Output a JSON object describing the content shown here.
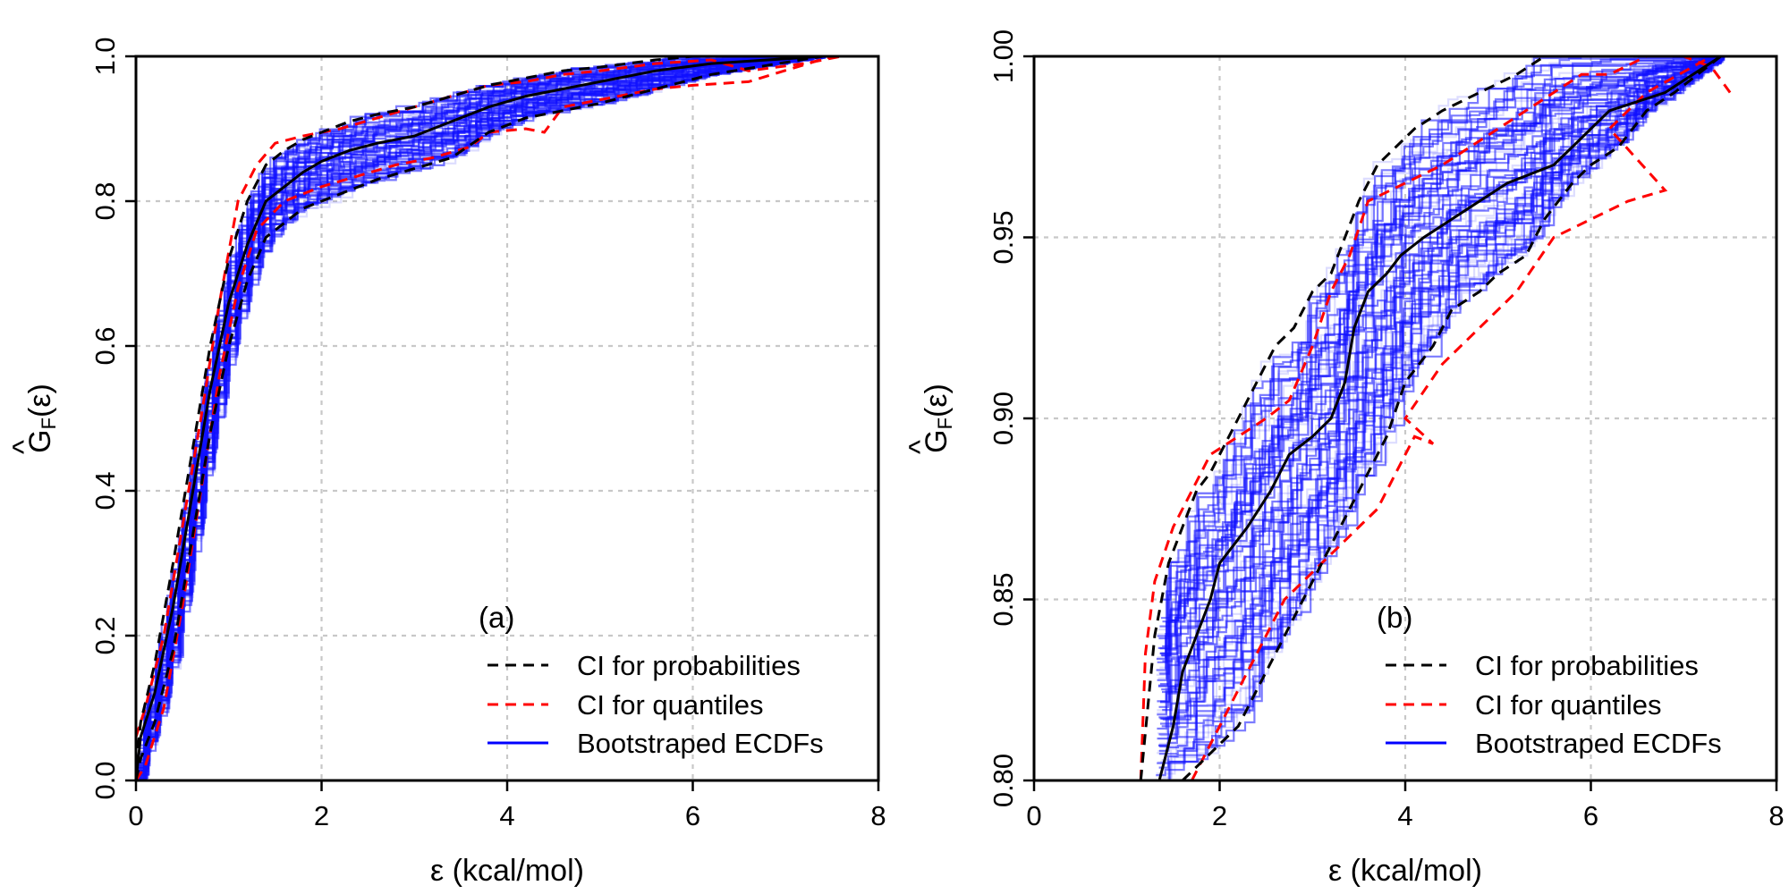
{
  "chart_data": [
    {
      "type": "line",
      "panel_label": "(a)",
      "xlabel": "ε (kcal/mol)",
      "ylabel_main": "G",
      "ylabel_hat": "^",
      "ylabel_sub": "F",
      "ylabel_arg": "(ε)",
      "xlim": [
        0,
        8
      ],
      "ylim": [
        0,
        1
      ],
      "xticks": [
        0,
        2,
        4,
        6,
        8
      ],
      "yticks": [
        0.0,
        0.2,
        0.4,
        0.6,
        0.8,
        1.0
      ],
      "ytick_labels": [
        "0.0",
        "0.2",
        "0.4",
        "0.6",
        "0.8",
        "1.0"
      ],
      "grid": true,
      "legend_position": "bottom-right",
      "legend": [
        "CI for probabilities",
        "CI for quantiles",
        "Bootstraped ECDFs"
      ],
      "series": [
        {
          "name": "ECDF",
          "color": "#000000",
          "style": "solid",
          "x": [
            0,
            0.05,
            0.2,
            0.4,
            0.6,
            0.8,
            1.0,
            1.2,
            1.4,
            1.6,
            1.8,
            2.0,
            2.3,
            2.6,
            3.0,
            3.4,
            3.8,
            4.2,
            4.6,
            5.0,
            5.6,
            6.2,
            7.4
          ],
          "y": [
            0.0,
            0.06,
            0.12,
            0.24,
            0.39,
            0.54,
            0.66,
            0.74,
            0.8,
            0.82,
            0.84,
            0.855,
            0.87,
            0.88,
            0.89,
            0.91,
            0.93,
            0.945,
            0.955,
            0.965,
            0.98,
            0.99,
            1.0
          ]
        },
        {
          "name": "CI for probabilities (upper)",
          "color": "#000000",
          "style": "dashed",
          "x": [
            0,
            0.05,
            0.2,
            0.4,
            0.6,
            0.8,
            1.0,
            1.2,
            1.4,
            1.6,
            1.8,
            2.0,
            2.3,
            2.6,
            3.0,
            3.4,
            3.8,
            4.2,
            4.6,
            5.0,
            5.6,
            6.0,
            7.2
          ],
          "y": [
            0.02,
            0.08,
            0.16,
            0.3,
            0.45,
            0.6,
            0.72,
            0.8,
            0.85,
            0.87,
            0.885,
            0.895,
            0.91,
            0.92,
            0.93,
            0.945,
            0.96,
            0.97,
            0.98,
            0.985,
            0.995,
            1.0,
            1.0
          ]
        },
        {
          "name": "CI for probabilities (lower)",
          "color": "#000000",
          "style": "dashed",
          "x": [
            0,
            0.05,
            0.2,
            0.4,
            0.6,
            0.8,
            1.0,
            1.2,
            1.4,
            1.6,
            1.8,
            2.0,
            2.3,
            2.6,
            3.0,
            3.4,
            3.8,
            4.2,
            4.6,
            5.0,
            5.6,
            6.2,
            7.4
          ],
          "y": [
            0.0,
            0.03,
            0.08,
            0.18,
            0.33,
            0.48,
            0.6,
            0.69,
            0.75,
            0.77,
            0.79,
            0.8,
            0.815,
            0.83,
            0.845,
            0.86,
            0.895,
            0.915,
            0.925,
            0.935,
            0.955,
            0.975,
            1.0
          ]
        },
        {
          "name": "CI for quantiles (upper)",
          "color": "#ff0000",
          "style": "dashed",
          "x": [
            0,
            0.1,
            0.3,
            0.5,
            0.7,
            0.9,
            1.1,
            1.3,
            1.5,
            1.8,
            2.2,
            2.6,
            3.0,
            3.4,
            3.8,
            4.2,
            4.6,
            5.0,
            5.6,
            6.2,
            6.6,
            7.2,
            7.6
          ],
          "y": [
            0.06,
            0.1,
            0.2,
            0.35,
            0.5,
            0.66,
            0.8,
            0.85,
            0.88,
            0.89,
            0.9,
            0.915,
            0.93,
            0.945,
            0.96,
            0.965,
            0.975,
            0.98,
            0.99,
            0.995,
            0.98,
            0.99,
            1.0
          ]
        },
        {
          "name": "CI for quantiles (lower)",
          "color": "#ff0000",
          "style": "dashed",
          "x": [
            0,
            0.1,
            0.3,
            0.5,
            0.7,
            0.9,
            1.1,
            1.3,
            1.6,
            2.0,
            2.4,
            2.8,
            3.2,
            3.6,
            3.8,
            4.2,
            4.4,
            4.6,
            5.0,
            5.6,
            6.0,
            6.6,
            7.5
          ],
          "y": [
            0.0,
            0.02,
            0.1,
            0.24,
            0.4,
            0.56,
            0.68,
            0.76,
            0.8,
            0.82,
            0.835,
            0.85,
            0.86,
            0.875,
            0.895,
            0.9,
            0.895,
            0.93,
            0.94,
            0.955,
            0.96,
            0.965,
            1.0
          ]
        }
      ]
    },
    {
      "type": "line",
      "panel_label": "(b)",
      "xlabel": "ε (kcal/mol)",
      "ylabel_main": "G",
      "ylabel_hat": "^",
      "ylabel_sub": "F",
      "ylabel_arg": "(ε)",
      "xlim": [
        0,
        8
      ],
      "ylim": [
        0.8,
        1.0
      ],
      "xticks": [
        0,
        2,
        4,
        6,
        8
      ],
      "yticks": [
        0.8,
        0.85,
        0.9,
        0.95,
        1.0
      ],
      "ytick_labels": [
        "0.80",
        "0.85",
        "0.90",
        "0.95",
        "1.00"
      ],
      "grid": true,
      "legend_position": "bottom-right",
      "legend": [
        "CI for probabilities",
        "CI for quantiles",
        "Bootstraped ECDFs"
      ],
      "series": [
        {
          "name": "ECDF",
          "color": "#000000",
          "style": "solid",
          "x": [
            1.35,
            1.5,
            1.6,
            1.75,
            1.9,
            2.0,
            2.15,
            2.3,
            2.55,
            2.75,
            3.0,
            3.2,
            3.35,
            3.45,
            3.6,
            3.8,
            3.95,
            4.2,
            4.5,
            5.1,
            5.6,
            5.8,
            6.2,
            6.8,
            7.4
          ],
          "y": [
            0.8,
            0.815,
            0.83,
            0.84,
            0.85,
            0.86,
            0.865,
            0.87,
            0.88,
            0.89,
            0.895,
            0.9,
            0.91,
            0.925,
            0.935,
            0.94,
            0.945,
            0.95,
            0.955,
            0.965,
            0.97,
            0.975,
            0.985,
            0.99,
            1.0
          ]
        },
        {
          "name": "CI for probabilities (upper)",
          "color": "#000000",
          "style": "dashed",
          "x": [
            1.15,
            1.3,
            1.45,
            1.6,
            1.75,
            1.9,
            2.0,
            2.2,
            2.4,
            2.6,
            2.8,
            3.0,
            3.2,
            3.35,
            3.5,
            3.7,
            3.9,
            4.1,
            4.4,
            4.8,
            5.2,
            5.5,
            5.7,
            6.0,
            7.2
          ],
          "y": [
            0.8,
            0.84,
            0.86,
            0.87,
            0.88,
            0.885,
            0.89,
            0.9,
            0.91,
            0.92,
            0.925,
            0.935,
            0.94,
            0.95,
            0.96,
            0.97,
            0.975,
            0.98,
            0.985,
            0.99,
            0.995,
            1.0,
            1.0,
            1.0,
            1.0
          ]
        },
        {
          "name": "CI for probabilities (lower)",
          "color": "#000000",
          "style": "dashed",
          "x": [
            1.6,
            1.8,
            2.0,
            2.2,
            2.4,
            2.6,
            2.8,
            3.0,
            3.2,
            3.4,
            3.6,
            3.8,
            4.0,
            4.3,
            4.5,
            4.8,
            5.0,
            5.3,
            5.5,
            5.8,
            6.0,
            6.3,
            6.6,
            6.9,
            7.4
          ],
          "y": [
            0.8,
            0.805,
            0.81,
            0.815,
            0.825,
            0.835,
            0.845,
            0.855,
            0.865,
            0.875,
            0.885,
            0.895,
            0.91,
            0.92,
            0.93,
            0.935,
            0.94,
            0.945,
            0.955,
            0.965,
            0.97,
            0.975,
            0.985,
            0.99,
            1.0
          ]
        },
        {
          "name": "CI for quantiles (upper)",
          "color": "#ff0000",
          "style": "dashed",
          "x": [
            1.15,
            1.2,
            1.3,
            1.5,
            1.7,
            1.9,
            2.2,
            2.5,
            2.75,
            3.0,
            3.2,
            3.4,
            3.6,
            4.0,
            4.4,
            4.7,
            5.0,
            5.3,
            5.6,
            5.9,
            6.2,
            6.6,
            7.0,
            7.3,
            7.5
          ],
          "y": [
            0.8,
            0.835,
            0.855,
            0.87,
            0.88,
            0.89,
            0.895,
            0.9,
            0.905,
            0.92,
            0.935,
            0.945,
            0.96,
            0.965,
            0.97,
            0.975,
            0.98,
            0.985,
            0.99,
            0.995,
            0.995,
            1.0,
            1.0,
            0.997,
            0.99
          ]
        },
        {
          "name": "CI for quantiles (lower)",
          "color": "#ff0000",
          "style": "dashed",
          "x": [
            1.7,
            1.9,
            2.1,
            2.3,
            2.5,
            2.7,
            2.9,
            3.1,
            3.3,
            3.5,
            3.7,
            3.9,
            4.1,
            4.3,
            4.0,
            4.4,
            4.8,
            5.2,
            5.6,
            6.0,
            6.4,
            6.8,
            6.2,
            6.6,
            7.3
          ],
          "y": [
            0.8,
            0.81,
            0.82,
            0.83,
            0.84,
            0.85,
            0.855,
            0.86,
            0.865,
            0.87,
            0.875,
            0.885,
            0.895,
            0.893,
            0.9,
            0.915,
            0.925,
            0.935,
            0.95,
            0.955,
            0.96,
            0.963,
            0.98,
            0.99,
            1.0
          ]
        }
      ]
    }
  ]
}
